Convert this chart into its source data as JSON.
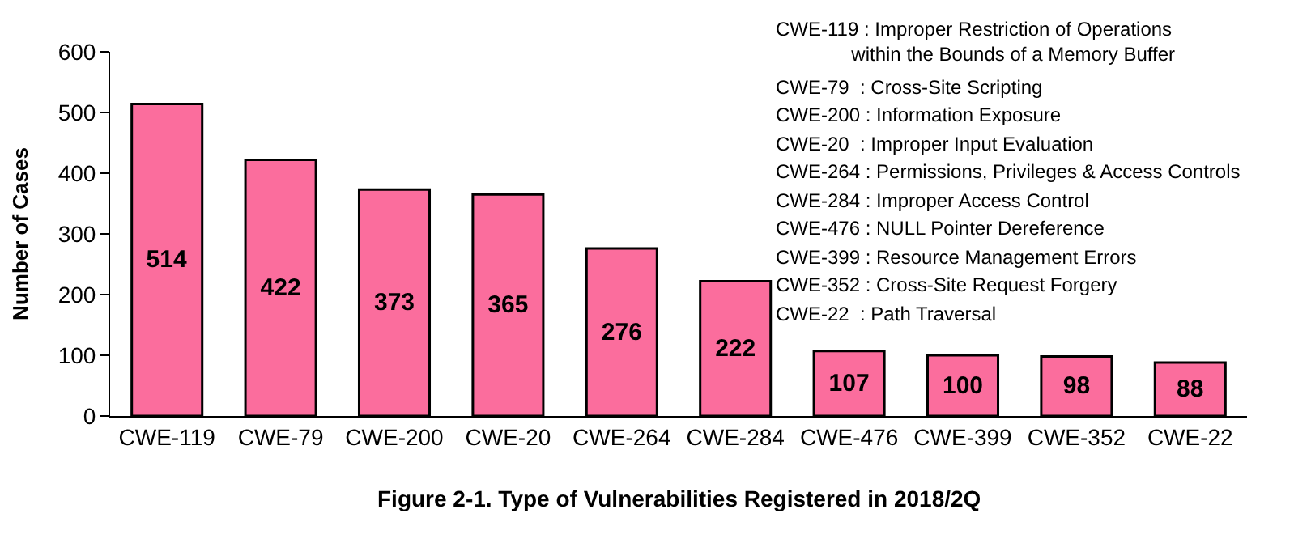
{
  "chart_data": {
    "type": "bar",
    "title": "Figure 2-1. Type of Vulnerabilities Registered in 2018/2Q",
    "ylabel": "Number of Cases",
    "categories": [
      "CWE-119",
      "CWE-79",
      "CWE-200",
      "CWE-20",
      "CWE-264",
      "CWE-284",
      "CWE-476",
      "CWE-399",
      "CWE-352",
      "CWE-22"
    ],
    "values": [
      514,
      422,
      373,
      365,
      276,
      222,
      107,
      100,
      98,
      88
    ],
    "color": "#fb6d9d",
    "ylim": [
      0,
      600
    ],
    "yticks": [
      0,
      100,
      200,
      300,
      400,
      500,
      600
    ],
    "grid": false,
    "data_labels": true,
    "legend": false,
    "annotations": [
      "CWE-119 : Improper Restriction of Operations\n              within the Bounds of a Memory Buffer",
      "CWE-79  : Cross-Site Scripting",
      "CWE-200 : Information Exposure",
      "CWE-20  : Improper Input Evaluation",
      "CWE-264 : Permissions, Privileges & Access Controls",
      "CWE-284 : Improper Access Control",
      "CWE-476 : NULL Pointer Dereference",
      "CWE-399 : Resource Management Errors",
      "CWE-352 : Cross-Site Request Forgery",
      "CWE-22  : Path Traversal"
    ]
  }
}
